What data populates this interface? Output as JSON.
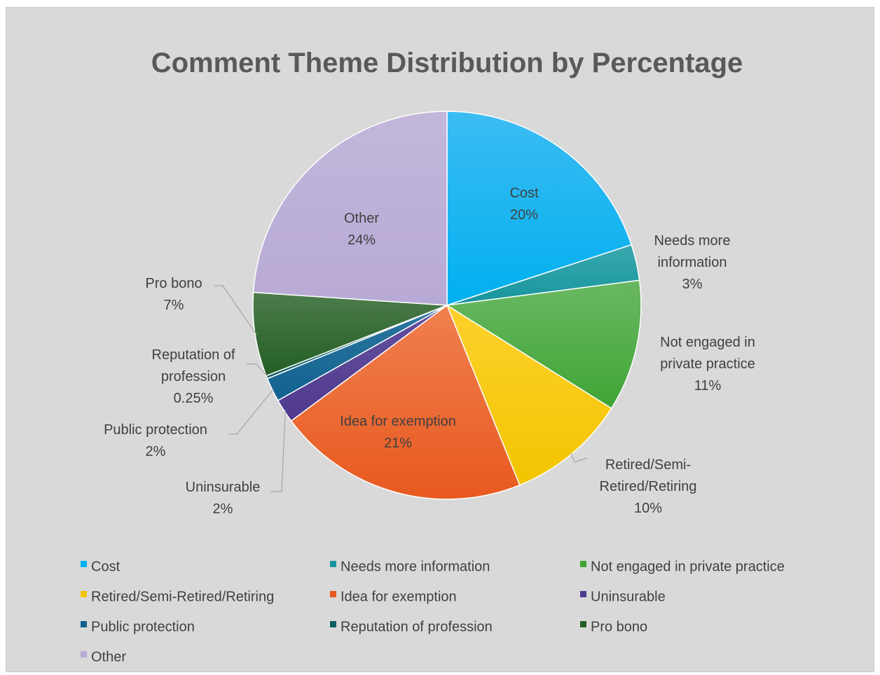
{
  "chart_data": {
    "type": "pie",
    "title": "Comment Theme Distribution by Percentage",
    "slices": [
      {
        "name": "Cost",
        "value": 20,
        "label": "20%",
        "color": "#00b0f0",
        "color_light": "#3cbcf2"
      },
      {
        "name": "Needs more information",
        "value": 3,
        "label": "3%",
        "color": "#17959d",
        "color_light": "#3aa8ae"
      },
      {
        "name": "Not engaged in private practice",
        "value": 11,
        "label": "11%",
        "color": "#3fa535",
        "color_light": "#6ab862"
      },
      {
        "name": "Retired/Semi-Retired/Retiring",
        "value": 10,
        "label": "10%",
        "color": "#f2c400",
        "color_light": "#fed12c"
      },
      {
        "name": "Idea for exemption",
        "value": 21,
        "label": "21%",
        "color": "#e8591f",
        "color_light": "#f0804f"
      },
      {
        "name": "Uninsurable",
        "value": 2,
        "label": "2%",
        "color": "#4f3a8f",
        "color_light": "#65519e"
      },
      {
        "name": "Public protection",
        "value": 2,
        "label": "2%",
        "color": "#11618f",
        "color_light": "#2d77a0"
      },
      {
        "name": "Reputation of profession",
        "value": 0.25,
        "label": "0.25%",
        "color": "#0d5e61",
        "color_light": "#257274"
      },
      {
        "name": "Pro bono",
        "value": 7,
        "label": "7%",
        "color": "#235e24",
        "color_light": "#4c7c4c"
      },
      {
        "name": "Other",
        "value": 24,
        "label": "24%",
        "color": "#b8aad6",
        "color_light": "#c2b7da"
      }
    ],
    "data_labels": [
      {
        "lines": [
          "Cost",
          "20%"
        ],
        "placement": "inside"
      },
      {
        "lines": [
          "Needs more",
          "information",
          "3%"
        ],
        "placement": "outside-right"
      },
      {
        "lines": [
          "Not engaged in",
          "private practice",
          "11%"
        ],
        "placement": "outside-right"
      },
      {
        "lines": [
          "Retired/Semi-",
          "Retired/Retiring",
          "10%"
        ],
        "placement": "outside-bottom-right"
      },
      {
        "lines": [
          "Idea for exemption",
          "21%"
        ],
        "placement": "inside"
      },
      {
        "lines": [
          "Uninsurable",
          "2%"
        ],
        "placement": "outside-bottom-left"
      },
      {
        "lines": [
          "Public protection",
          "2%"
        ],
        "placement": "outside-left"
      },
      {
        "lines": [
          "Reputation of",
          "profession",
          "0.25%"
        ],
        "placement": "outside-left"
      },
      {
        "lines": [
          "Pro bono",
          "7%"
        ],
        "placement": "outside-left"
      },
      {
        "lines": [
          "Other",
          "24%"
        ],
        "placement": "inside"
      }
    ],
    "legend_position": "bottom"
  }
}
